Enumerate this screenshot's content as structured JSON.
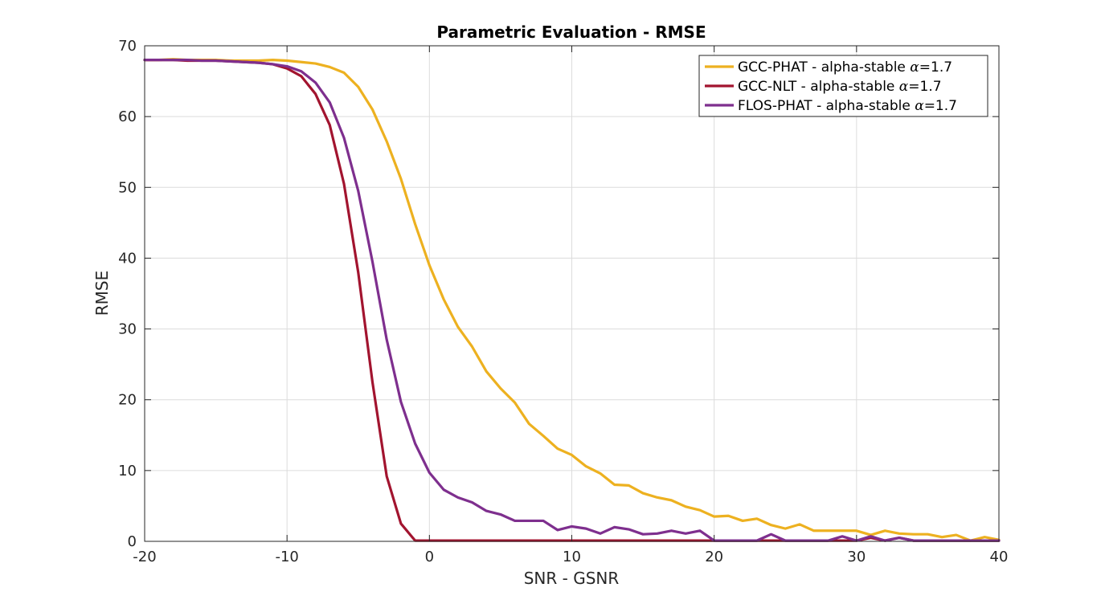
{
  "chart_data": {
    "type": "line",
    "title": "Parametric Evaluation - RMSE",
    "xlabel": "SNR - GSNR",
    "ylabel": "RMSE",
    "xlim": [
      -20,
      40
    ],
    "ylim": [
      0,
      70
    ],
    "xticks": [
      -20,
      -10,
      0,
      10,
      20,
      30,
      40
    ],
    "yticks": [
      0,
      10,
      20,
      30,
      40,
      50,
      60,
      70
    ],
    "grid": true,
    "legend_position": "top-right",
    "x": [
      -20,
      -19,
      -18,
      -17,
      -16,
      -15,
      -14,
      -13,
      -12,
      -11,
      -10,
      -9,
      -8,
      -7,
      -6,
      -5,
      -4,
      -3,
      -2,
      -1,
      0,
      1,
      2,
      3,
      4,
      5,
      6,
      7,
      8,
      9,
      10,
      11,
      12,
      13,
      14,
      15,
      16,
      17,
      18,
      19,
      20,
      21,
      22,
      23,
      24,
      25,
      26,
      27,
      28,
      29,
      30,
      31,
      32,
      33,
      34,
      35,
      36,
      37,
      38,
      39,
      40
    ],
    "series": [
      {
        "name_prefix": "GCC-PHAT - alpha-stable ",
        "name_suffix": "=1.7",
        "color": "#EDB120",
        "values": [
          68.0,
          68.0,
          68.1,
          68.0,
          68.0,
          68.0,
          67.9,
          67.9,
          67.9,
          68.0,
          67.9,
          67.7,
          67.5,
          67.0,
          66.2,
          64.2,
          61.0,
          56.5,
          51.2,
          44.8,
          39.0,
          34.2,
          30.3,
          27.5,
          24.0,
          21.6,
          19.6,
          16.6,
          14.9,
          13.1,
          12.2,
          10.6,
          9.6,
          8.0,
          7.9,
          6.8,
          6.2,
          5.8,
          4.9,
          4.4,
          3.5,
          3.6,
          2.9,
          3.2,
          2.3,
          1.8,
          2.4,
          1.5,
          1.5,
          1.5,
          1.5,
          0.9,
          1.5,
          1.1,
          1.0,
          1.0,
          0.6,
          0.9,
          0.1,
          0.6,
          0.2
        ]
      },
      {
        "name_prefix": "GCC-NLT - alpha-stable ",
        "name_suffix": "=1.7",
        "color": "#A2142F",
        "values": [
          68.0,
          68.0,
          68.0,
          67.9,
          67.9,
          67.9,
          67.8,
          67.7,
          67.6,
          67.4,
          66.8,
          65.7,
          63.2,
          58.8,
          50.5,
          38.0,
          22.5,
          9.2,
          2.5,
          0.1,
          0.1,
          0.1,
          0.1,
          0.1,
          0.1,
          0.1,
          0.1,
          0.1,
          0.1,
          0.1,
          0.1,
          0.1,
          0.1,
          0.1,
          0.1,
          0.1,
          0.1,
          0.1,
          0.1,
          0.1,
          0.1,
          0.1,
          0.1,
          0.1,
          0.1,
          0.1,
          0.1,
          0.1,
          0.1,
          0.1,
          0.1,
          0.5,
          0.1,
          0.5,
          0.1,
          0.1,
          0.1,
          0.1,
          0.1,
          0.1,
          0.1
        ]
      },
      {
        "name_prefix": "FLOS-PHAT - alpha-stable ",
        "name_suffix": "=1.7",
        "color": "#7E2F8E",
        "values": [
          68.0,
          68.0,
          68.0,
          68.0,
          67.9,
          67.9,
          67.8,
          67.7,
          67.6,
          67.4,
          67.1,
          66.4,
          64.8,
          62.0,
          57.0,
          49.5,
          39.5,
          28.5,
          19.7,
          13.8,
          9.7,
          7.3,
          6.2,
          5.5,
          4.3,
          3.8,
          2.9,
          2.9,
          2.9,
          1.6,
          2.1,
          1.8,
          1.1,
          2.0,
          1.7,
          1.0,
          1.1,
          1.5,
          1.1,
          1.5,
          0.1,
          0.1,
          0.1,
          0.1,
          1.0,
          0.1,
          0.1,
          0.1,
          0.1,
          0.7,
          0.1,
          0.7,
          0.1,
          0.5,
          0.1,
          0.1,
          0.1,
          0.1,
          0.1,
          0.1,
          0.1
        ]
      }
    ]
  }
}
